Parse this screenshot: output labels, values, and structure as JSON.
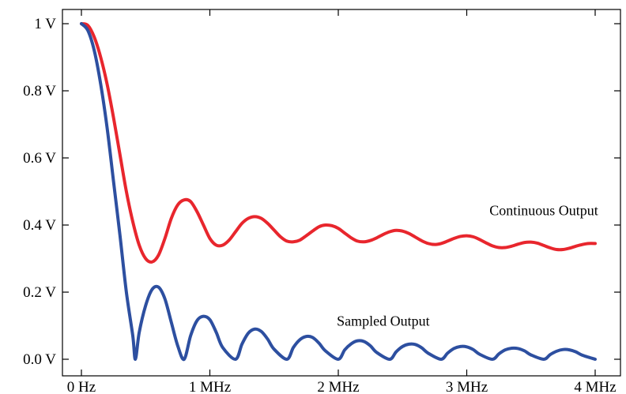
{
  "chart_data": {
    "type": "line",
    "title": "",
    "xlabel": "",
    "ylabel": "",
    "xlim": [
      0,
      4
    ],
    "ylim": [
      0,
      1
    ],
    "grid": false,
    "x_ticks": [
      {
        "value": 0,
        "label": "0 Hz"
      },
      {
        "value": 1,
        "label": "1 MHz"
      },
      {
        "value": 2,
        "label": "2 MHz"
      },
      {
        "value": 3,
        "label": "3 MHz"
      },
      {
        "value": 4,
        "label": "4 MHz"
      }
    ],
    "y_ticks": [
      {
        "value": 0,
        "label": "0.0 V"
      },
      {
        "value": 0.2,
        "label": "0.2 V"
      },
      {
        "value": 0.4,
        "label": "0.4 V"
      },
      {
        "value": 0.6,
        "label": "0.6 V"
      },
      {
        "value": 0.8,
        "label": "0.8 V"
      },
      {
        "value": 1,
        "label": "1 V"
      }
    ],
    "series": [
      {
        "name": "Continuous Output",
        "color": "#e8262d",
        "label_anchor": [
          3.6,
          0.43
        ],
        "points": [
          [
            0.0,
            1.0
          ],
          [
            0.05,
            0.995
          ],
          [
            0.1,
            0.96
          ],
          [
            0.15,
            0.9
          ],
          [
            0.2,
            0.82
          ],
          [
            0.25,
            0.72
          ],
          [
            0.3,
            0.61
          ],
          [
            0.35,
            0.5
          ],
          [
            0.4,
            0.41
          ],
          [
            0.45,
            0.34
          ],
          [
            0.5,
            0.3
          ],
          [
            0.55,
            0.29
          ],
          [
            0.6,
            0.31
          ],
          [
            0.65,
            0.36
          ],
          [
            0.7,
            0.42
          ],
          [
            0.75,
            0.46
          ],
          [
            0.8,
            0.475
          ],
          [
            0.85,
            0.47
          ],
          [
            0.9,
            0.44
          ],
          [
            0.95,
            0.4
          ],
          [
            1.0,
            0.36
          ],
          [
            1.05,
            0.34
          ],
          [
            1.1,
            0.34
          ],
          [
            1.15,
            0.355
          ],
          [
            1.2,
            0.38
          ],
          [
            1.25,
            0.405
          ],
          [
            1.3,
            0.42
          ],
          [
            1.35,
            0.425
          ],
          [
            1.4,
            0.42
          ],
          [
            1.45,
            0.405
          ],
          [
            1.5,
            0.385
          ],
          [
            1.55,
            0.365
          ],
          [
            1.6,
            0.352
          ],
          [
            1.65,
            0.35
          ],
          [
            1.7,
            0.355
          ],
          [
            1.75,
            0.368
          ],
          [
            1.8,
            0.382
          ],
          [
            1.85,
            0.395
          ],
          [
            1.9,
            0.4
          ],
          [
            1.95,
            0.398
          ],
          [
            2.0,
            0.39
          ],
          [
            2.05,
            0.376
          ],
          [
            2.1,
            0.362
          ],
          [
            2.15,
            0.352
          ],
          [
            2.2,
            0.35
          ],
          [
            2.25,
            0.354
          ],
          [
            2.3,
            0.362
          ],
          [
            2.35,
            0.372
          ],
          [
            2.4,
            0.38
          ],
          [
            2.45,
            0.384
          ],
          [
            2.5,
            0.382
          ],
          [
            2.55,
            0.375
          ],
          [
            2.6,
            0.364
          ],
          [
            2.65,
            0.353
          ],
          [
            2.7,
            0.345
          ],
          [
            2.75,
            0.342
          ],
          [
            2.8,
            0.345
          ],
          [
            2.85,
            0.352
          ],
          [
            2.9,
            0.36
          ],
          [
            2.95,
            0.366
          ],
          [
            3.0,
            0.368
          ],
          [
            3.05,
            0.365
          ],
          [
            3.1,
            0.357
          ],
          [
            3.15,
            0.347
          ],
          [
            3.2,
            0.338
          ],
          [
            3.25,
            0.333
          ],
          [
            3.3,
            0.333
          ],
          [
            3.35,
            0.337
          ],
          [
            3.4,
            0.343
          ],
          [
            3.45,
            0.348
          ],
          [
            3.5,
            0.349
          ],
          [
            3.55,
            0.346
          ],
          [
            3.6,
            0.339
          ],
          [
            3.65,
            0.332
          ],
          [
            3.7,
            0.327
          ],
          [
            3.75,
            0.327
          ],
          [
            3.8,
            0.331
          ],
          [
            3.85,
            0.337
          ],
          [
            3.9,
            0.342
          ],
          [
            3.95,
            0.345
          ],
          [
            4.0,
            0.345
          ]
        ]
      },
      {
        "name": "Sampled Output",
        "color": "#2d4fa0",
        "label_anchor": [
          2.35,
          0.1
        ],
        "points": [
          [
            0.0,
            1.0
          ],
          [
            0.05,
            0.98
          ],
          [
            0.1,
            0.92
          ],
          [
            0.15,
            0.82
          ],
          [
            0.2,
            0.69
          ],
          [
            0.25,
            0.53
          ],
          [
            0.3,
            0.37
          ],
          [
            0.35,
            0.2
          ],
          [
            0.4,
            0.07
          ],
          [
            0.42,
            0.0
          ],
          [
            0.45,
            0.08
          ],
          [
            0.5,
            0.16
          ],
          [
            0.55,
            0.208
          ],
          [
            0.6,
            0.215
          ],
          [
            0.65,
            0.18
          ],
          [
            0.7,
            0.11
          ],
          [
            0.75,
            0.04
          ],
          [
            0.8,
            0.0
          ],
          [
            0.85,
            0.07
          ],
          [
            0.9,
            0.115
          ],
          [
            0.95,
            0.128
          ],
          [
            1.0,
            0.118
          ],
          [
            1.05,
            0.08
          ],
          [
            1.1,
            0.035
          ],
          [
            1.2,
            0.0
          ],
          [
            1.25,
            0.045
          ],
          [
            1.3,
            0.078
          ],
          [
            1.35,
            0.09
          ],
          [
            1.4,
            0.083
          ],
          [
            1.45,
            0.06
          ],
          [
            1.5,
            0.03
          ],
          [
            1.6,
            0.0
          ],
          [
            1.65,
            0.035
          ],
          [
            1.7,
            0.058
          ],
          [
            1.75,
            0.068
          ],
          [
            1.8,
            0.065
          ],
          [
            1.85,
            0.048
          ],
          [
            1.9,
            0.025
          ],
          [
            2.0,
            0.0
          ],
          [
            2.05,
            0.028
          ],
          [
            2.1,
            0.046
          ],
          [
            2.15,
            0.055
          ],
          [
            2.2,
            0.053
          ],
          [
            2.25,
            0.04
          ],
          [
            2.3,
            0.02
          ],
          [
            2.4,
            0.0
          ],
          [
            2.45,
            0.022
          ],
          [
            2.5,
            0.038
          ],
          [
            2.55,
            0.045
          ],
          [
            2.6,
            0.044
          ],
          [
            2.65,
            0.034
          ],
          [
            2.7,
            0.018
          ],
          [
            2.8,
            0.0
          ],
          [
            2.85,
            0.018
          ],
          [
            2.9,
            0.032
          ],
          [
            2.95,
            0.038
          ],
          [
            3.0,
            0.037
          ],
          [
            3.05,
            0.029
          ],
          [
            3.1,
            0.015
          ],
          [
            3.2,
            0.0
          ],
          [
            3.25,
            0.016
          ],
          [
            3.3,
            0.028
          ],
          [
            3.35,
            0.033
          ],
          [
            3.4,
            0.032
          ],
          [
            3.45,
            0.025
          ],
          [
            3.5,
            0.013
          ],
          [
            3.6,
            0.0
          ],
          [
            3.65,
            0.014
          ],
          [
            3.7,
            0.024
          ],
          [
            3.75,
            0.029
          ],
          [
            3.8,
            0.028
          ],
          [
            3.85,
            0.022
          ],
          [
            3.9,
            0.012
          ],
          [
            4.0,
            0.0
          ]
        ]
      }
    ]
  }
}
